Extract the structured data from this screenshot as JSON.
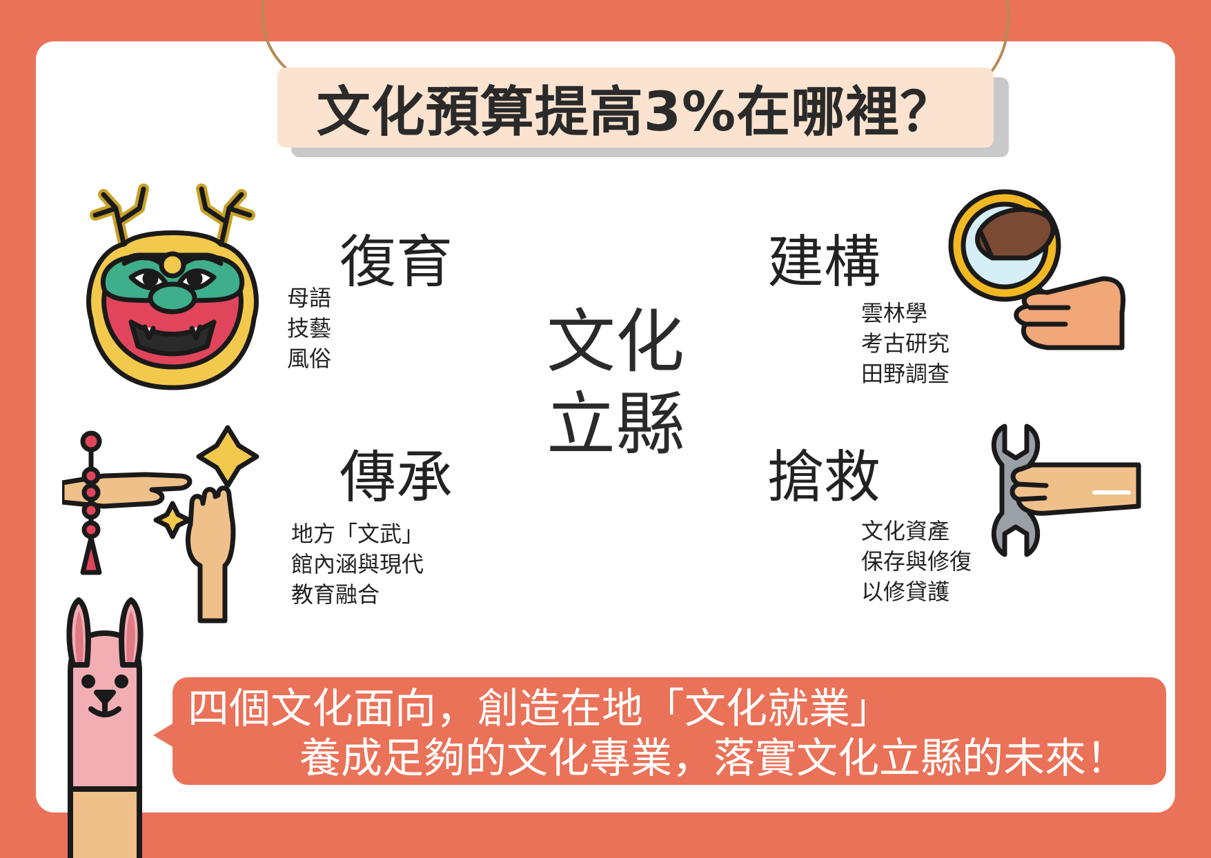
{
  "title": "文化預算提高3%在哪裡？",
  "center": {
    "line1": "文化",
    "line2": "立縣"
  },
  "quadrants": {
    "top_left": {
      "heading": "復育",
      "items": [
        "母語",
        "技藝",
        "風俗"
      ]
    },
    "top_right": {
      "heading": "建構",
      "items": [
        "雲林學",
        "考古研究",
        "田野調查"
      ]
    },
    "bottom_left": {
      "heading": "傳承",
      "items": [
        "地方「文武」",
        "館內涵與現代",
        "教育融合"
      ]
    },
    "bottom_right": {
      "heading": "搶救",
      "items": [
        "文化資產",
        "保存與修復",
        "以修貸護"
      ]
    }
  },
  "banner": {
    "line1": "四個文化面向，創造在地「文化就業」",
    "line2": "養成足夠的文化專業，落實文化立縣的未來！"
  },
  "icons": [
    "dragon-mask-icon",
    "magnifier-stone-icon",
    "hands-ornament-icon",
    "wrench-hand-icon",
    "llama-mascot-icon"
  ],
  "colors": {
    "accent": "#ea7258",
    "title_bg": "#fbe3cf",
    "text": "#222222"
  }
}
